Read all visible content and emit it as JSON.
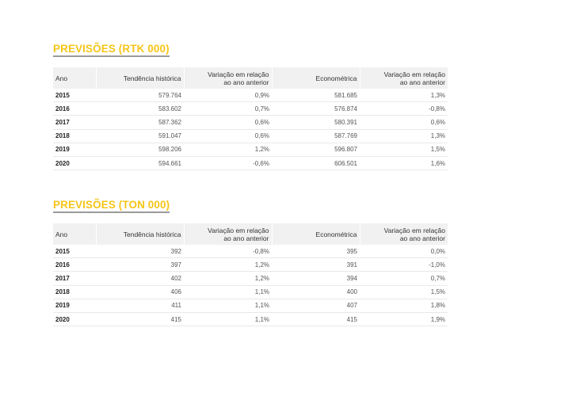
{
  "tables": [
    {
      "title": "PREVISÕES (RTK 000)",
      "headers": {
        "year": "Ano",
        "historical": "Tendência histórica",
        "variation1_line1": "Variação em relação",
        "variation1_line2": "ao ano anterior",
        "econometric": "Econométrica",
        "variation2_line1": "Variação em relação",
        "variation2_line2": "ao ano anterior"
      },
      "rows": [
        {
          "year": "2015",
          "historical": "579.764",
          "var1": "0,9%",
          "econometric": "581.685",
          "var2": "1,3%"
        },
        {
          "year": "2016",
          "historical": "583.602",
          "var1": "0,7%",
          "econometric": "576.874",
          "var2": "-0,8%"
        },
        {
          "year": "2017",
          "historical": "587.362",
          "var1": "0,6%",
          "econometric": "580.391",
          "var2": "0,6%"
        },
        {
          "year": "2018",
          "historical": "591.047",
          "var1": "0,6%",
          "econometric": "587.769",
          "var2": "1,3%"
        },
        {
          "year": "2019",
          "historical": "598.206",
          "var1": "1,2%",
          "econometric": "596.807",
          "var2": "1,5%"
        },
        {
          "year": "2020",
          "historical": "594.661",
          "var1": "-0,6%",
          "econometric": "606.501",
          "var2": "1,6%"
        }
      ]
    },
    {
      "title": "PREVISÕES (TON 000)",
      "headers": {
        "year": "Ano",
        "historical": "Tendência histórica",
        "variation1_line1": "Variação em relação",
        "variation1_line2": "ao ano anterior",
        "econometric": "Econométrica",
        "variation2_line1": "Variação em relação",
        "variation2_line2": "ao ano anterior"
      },
      "rows": [
        {
          "year": "2015",
          "historical": "392",
          "var1": "-0,8%",
          "econometric": "395",
          "var2": "0,0%"
        },
        {
          "year": "2016",
          "historical": "397",
          "var1": "1,2%",
          "econometric": "391",
          "var2": "-1,0%"
        },
        {
          "year": "2017",
          "historical": "402",
          "var1": "1,2%",
          "econometric": "394",
          "var2": "0,7%"
        },
        {
          "year": "2018",
          "historical": "406",
          "var1": "1,1%",
          "econometric": "400",
          "var2": "1,5%"
        },
        {
          "year": "2019",
          "historical": "411",
          "var1": "1,1%",
          "econometric": "407",
          "var2": "1,8%"
        },
        {
          "year": "2020",
          "historical": "415",
          "var1": "1,1%",
          "econometric": "415",
          "var2": "1,9%"
        }
      ]
    }
  ],
  "colors": {
    "title": "#f5c518",
    "title_underline": "#9a9a9a",
    "header_bg": "#f1f1f1",
    "row_border": "#e9e9e9"
  }
}
